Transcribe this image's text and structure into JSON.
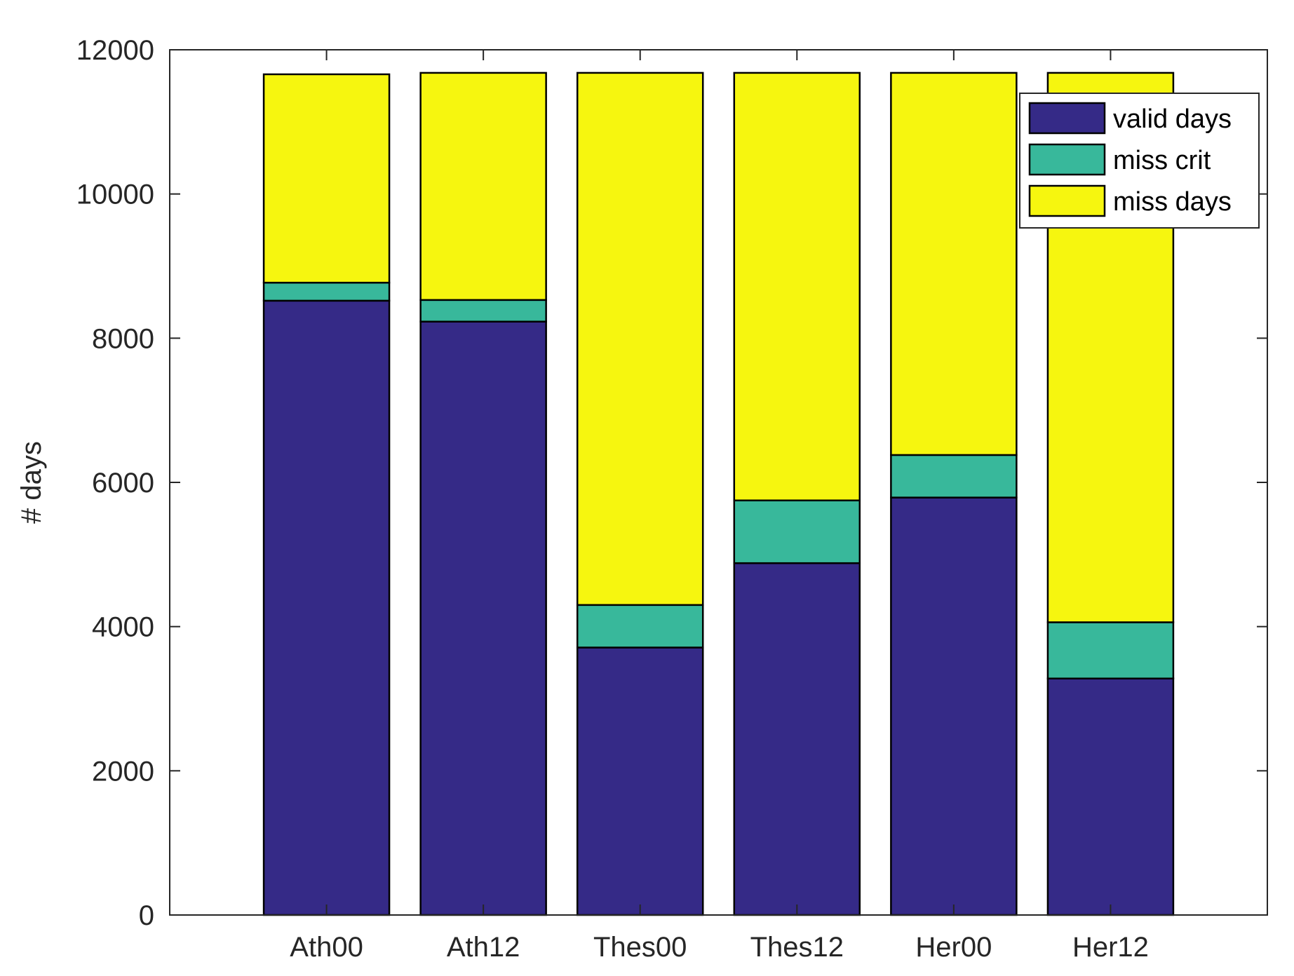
{
  "chart_data": {
    "type": "bar",
    "stacked": true,
    "title": "",
    "xlabel": "",
    "ylabel": "# days",
    "ylim": [
      0,
      12000
    ],
    "yticks": [
      0,
      2000,
      4000,
      6000,
      8000,
      10000,
      12000
    ],
    "ytick_labels": [
      "0",
      "2000",
      "4000",
      "6000",
      "8000",
      "10000",
      "12000"
    ],
    "categories": [
      "Ath00",
      "Ath12",
      "Thes00",
      "Thes12",
      "Her00",
      "Her12"
    ],
    "series": [
      {
        "name": "valid days",
        "color": "#352a87",
        "values": [
          8520,
          8230,
          3710,
          4880,
          5790,
          3280
        ]
      },
      {
        "name": "miss crit",
        "color": "#38b89b",
        "values": [
          250,
          300,
          590,
          870,
          590,
          780
        ]
      },
      {
        "name": "miss days",
        "color": "#f6f60f",
        "values": [
          2890,
          3150,
          7380,
          5930,
          5300,
          7620
        ]
      }
    ],
    "legend_position": "top-right",
    "grid": false
  }
}
